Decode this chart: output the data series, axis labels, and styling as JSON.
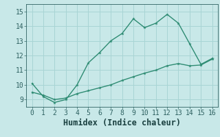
{
  "xlabel": "Humidex (Indice chaleur)",
  "xlim": [
    -0.5,
    16.5
  ],
  "ylim": [
    8.5,
    15.5
  ],
  "xticks": [
    0,
    1,
    2,
    3,
    4,
    5,
    6,
    7,
    8,
    9,
    10,
    11,
    12,
    13,
    14,
    15,
    16
  ],
  "yticks": [
    9,
    10,
    11,
    12,
    13,
    14,
    15
  ],
  "line1_x": [
    0,
    1,
    2,
    3,
    4,
    5,
    6,
    7,
    8,
    9,
    10,
    11,
    12,
    13,
    14,
    15,
    16
  ],
  "line1_y": [
    10.1,
    9.2,
    8.8,
    9.0,
    10.0,
    11.5,
    12.2,
    13.0,
    13.5,
    14.5,
    13.9,
    14.2,
    14.8,
    14.2,
    12.8,
    11.4,
    11.8
  ],
  "line2_x": [
    0,
    1,
    2,
    3,
    4,
    5,
    6,
    7,
    8,
    9,
    10,
    11,
    12,
    13,
    14,
    15,
    16
  ],
  "line2_y": [
    9.5,
    9.3,
    9.0,
    9.1,
    9.4,
    9.6,
    9.8,
    10.0,
    10.3,
    10.55,
    10.8,
    11.0,
    11.3,
    11.45,
    11.3,
    11.35,
    11.75
  ],
  "line_color": "#2d8b72",
  "bg_color": "#c8e8e8",
  "grid_color": "#a8d4d4",
  "tick_label_fontsize": 7,
  "xlabel_fontsize": 8.5,
  "marker": "*",
  "marker_size": 3.5,
  "linewidth": 1.0
}
